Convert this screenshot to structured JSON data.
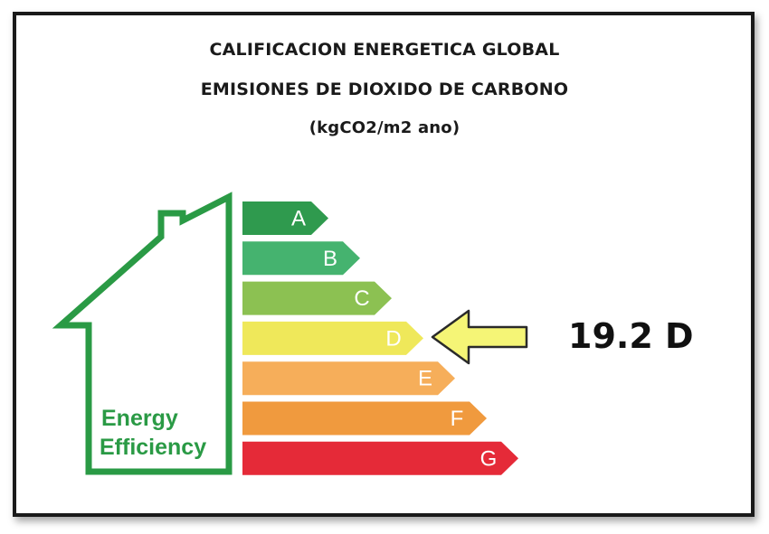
{
  "header": {
    "title_line_1": "CALIFICACION ENERGETICA GLOBAL",
    "title_line_2": "EMISIONES DE DIOXIDO DE CARBONO",
    "title_line_3": "(kgCO2/m2 ano)"
  },
  "house": {
    "text_line_1": "Energy",
    "text_line_2": "Efficiency",
    "color": "#2a9a45"
  },
  "scale": {
    "bands": [
      {
        "letter": "A",
        "color": "#2f9a4e"
      },
      {
        "letter": "B",
        "color": "#45b36f"
      },
      {
        "letter": "C",
        "color": "#8cc152"
      },
      {
        "letter": "D",
        "color": "#efe85a"
      },
      {
        "letter": "E",
        "color": "#f6ae5a"
      },
      {
        "letter": "F",
        "color": "#f09a3e"
      },
      {
        "letter": "G",
        "color": "#e52a38"
      }
    ],
    "selected_letter": "D"
  },
  "indicator": {
    "arrow_color": "#f5f576",
    "value_text": "19.2 D"
  }
}
